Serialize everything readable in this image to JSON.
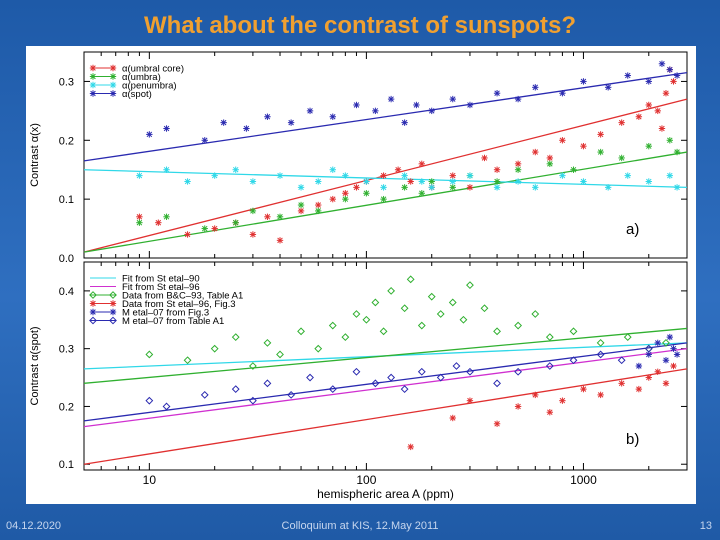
{
  "slide": {
    "title": "What about the contrast of sunspots?",
    "footer_date": "04.12.2020",
    "footer_center": "Colloquium at KIS, 12.May 2011",
    "page_number": "13"
  },
  "chart_data": [
    {
      "type": "scatter",
      "panel_label": "a)",
      "ylabel": "Contrast α(x)",
      "xlabel": "",
      "xscale": "log",
      "xlim": [
        5,
        3000
      ],
      "ylim": [
        0.0,
        0.35
      ],
      "yticks": [
        "0.0",
        "0.1",
        "0.2",
        "0.3"
      ],
      "legend_position": "top-left",
      "series": [
        {
          "name": "α(umbral core)",
          "color": "#e03030",
          "marker": "asterisk",
          "points": [
            [
              9,
              0.07
            ],
            [
              11,
              0.06
            ],
            [
              15,
              0.04
            ],
            [
              20,
              0.05
            ],
            [
              25,
              0.06
            ],
            [
              30,
              0.04
            ],
            [
              35,
              0.07
            ],
            [
              40,
              0.03
            ],
            [
              50,
              0.08
            ],
            [
              60,
              0.09
            ],
            [
              70,
              0.1
            ],
            [
              80,
              0.11
            ],
            [
              90,
              0.12
            ],
            [
              100,
              0.13
            ],
            [
              120,
              0.14
            ],
            [
              140,
              0.15
            ],
            [
              160,
              0.13
            ],
            [
              180,
              0.16
            ],
            [
              200,
              0.12
            ],
            [
              250,
              0.14
            ],
            [
              300,
              0.12
            ],
            [
              350,
              0.17
            ],
            [
              400,
              0.15
            ],
            [
              500,
              0.16
            ],
            [
              600,
              0.18
            ],
            [
              700,
              0.17
            ],
            [
              800,
              0.2
            ],
            [
              1000,
              0.19
            ],
            [
              1200,
              0.21
            ],
            [
              1500,
              0.23
            ],
            [
              1800,
              0.24
            ],
            [
              2000,
              0.26
            ],
            [
              2200,
              0.25
            ],
            [
              2400,
              0.28
            ],
            [
              2600,
              0.3
            ],
            [
              2300,
              0.22
            ],
            [
              2500,
              0.32
            ]
          ],
          "fit": [
            [
              5,
              0.01
            ],
            [
              3000,
              0.27
            ]
          ]
        },
        {
          "name": "α(umbra)",
          "color": "#30b030",
          "marker": "asterisk",
          "points": [
            [
              9,
              0.06
            ],
            [
              12,
              0.07
            ],
            [
              18,
              0.05
            ],
            [
              25,
              0.06
            ],
            [
              30,
              0.08
            ],
            [
              40,
              0.07
            ],
            [
              50,
              0.09
            ],
            [
              60,
              0.08
            ],
            [
              80,
              0.1
            ],
            [
              100,
              0.11
            ],
            [
              120,
              0.1
            ],
            [
              150,
              0.12
            ],
            [
              180,
              0.11
            ],
            [
              200,
              0.13
            ],
            [
              250,
              0.12
            ],
            [
              300,
              0.14
            ],
            [
              400,
              0.13
            ],
            [
              500,
              0.15
            ],
            [
              700,
              0.16
            ],
            [
              900,
              0.15
            ],
            [
              1200,
              0.18
            ],
            [
              1500,
              0.17
            ],
            [
              2000,
              0.19
            ],
            [
              2500,
              0.2
            ],
            [
              2700,
              0.18
            ]
          ],
          "fit": [
            [
              5,
              0.01
            ],
            [
              3000,
              0.18
            ]
          ]
        },
        {
          "name": "α(penumbra)",
          "color": "#30d8e8",
          "marker": "asterisk",
          "points": [
            [
              9,
              0.14
            ],
            [
              12,
              0.15
            ],
            [
              15,
              0.13
            ],
            [
              20,
              0.14
            ],
            [
              25,
              0.15
            ],
            [
              30,
              0.13
            ],
            [
              40,
              0.14
            ],
            [
              50,
              0.12
            ],
            [
              60,
              0.13
            ],
            [
              70,
              0.15
            ],
            [
              80,
              0.14
            ],
            [
              100,
              0.13
            ],
            [
              120,
              0.12
            ],
            [
              150,
              0.14
            ],
            [
              180,
              0.13
            ],
            [
              200,
              0.12
            ],
            [
              250,
              0.13
            ],
            [
              300,
              0.14
            ],
            [
              400,
              0.12
            ],
            [
              500,
              0.13
            ],
            [
              600,
              0.12
            ],
            [
              800,
              0.14
            ],
            [
              1000,
              0.13
            ],
            [
              1300,
              0.12
            ],
            [
              1600,
              0.14
            ],
            [
              2000,
              0.13
            ],
            [
              2500,
              0.14
            ],
            [
              2700,
              0.12
            ]
          ],
          "fit": [
            [
              5,
              0.15
            ],
            [
              3000,
              0.12
            ]
          ]
        },
        {
          "name": "α(spot)",
          "color": "#2a2ab0",
          "marker": "asterisk",
          "points": [
            [
              10,
              0.21
            ],
            [
              12,
              0.22
            ],
            [
              18,
              0.2
            ],
            [
              22,
              0.23
            ],
            [
              28,
              0.22
            ],
            [
              35,
              0.24
            ],
            [
              45,
              0.23
            ],
            [
              55,
              0.25
            ],
            [
              70,
              0.24
            ],
            [
              90,
              0.26
            ],
            [
              110,
              0.25
            ],
            [
              130,
              0.27
            ],
            [
              150,
              0.23
            ],
            [
              170,
              0.26
            ],
            [
              200,
              0.25
            ],
            [
              250,
              0.27
            ],
            [
              300,
              0.26
            ],
            [
              400,
              0.28
            ],
            [
              500,
              0.27
            ],
            [
              600,
              0.29
            ],
            [
              800,
              0.28
            ],
            [
              1000,
              0.3
            ],
            [
              1300,
              0.29
            ],
            [
              1600,
              0.31
            ],
            [
              2000,
              0.3
            ],
            [
              2300,
              0.33
            ],
            [
              2500,
              0.32
            ],
            [
              2700,
              0.31
            ]
          ],
          "fit": [
            [
              5,
              0.165
            ],
            [
              3000,
              0.315
            ]
          ]
        }
      ]
    },
    {
      "type": "scatter",
      "panel_label": "b)",
      "ylabel": "Contrast α(spot)",
      "xlabel": "hemispheric area A (ppm)",
      "xscale": "log",
      "xlim": [
        5,
        3000
      ],
      "ylim": [
        0.09,
        0.45
      ],
      "xticks": [
        {
          "value": 10,
          "label": "10"
        },
        {
          "value": 100,
          "label": "100"
        },
        {
          "value": 1000,
          "label": "1000"
        }
      ],
      "yticks": [
        "0.1",
        "0.2",
        "0.3",
        "0.4"
      ],
      "legend_position": "top-left",
      "series": [
        {
          "name": "Fit from St etal–90",
          "color": "#30d8e8",
          "marker": "none",
          "fit": [
            [
              5,
              0.265
            ],
            [
              3000,
              0.31
            ]
          ]
        },
        {
          "name": "Fit from St etal–96",
          "color": "#d030d0",
          "marker": "none",
          "fit": [
            [
              5,
              0.165
            ],
            [
              3000,
              0.3
            ]
          ]
        },
        {
          "name": "Data from B&C–93, Table A1",
          "color": "#30b030",
          "marker": "diamond",
          "points": [
            [
              10,
              0.29
            ],
            [
              15,
              0.28
            ],
            [
              20,
              0.3
            ],
            [
              25,
              0.32
            ],
            [
              30,
              0.27
            ],
            [
              35,
              0.31
            ],
            [
              40,
              0.29
            ],
            [
              50,
              0.33
            ],
            [
              60,
              0.3
            ],
            [
              70,
              0.34
            ],
            [
              80,
              0.32
            ],
            [
              90,
              0.36
            ],
            [
              100,
              0.35
            ],
            [
              110,
              0.38
            ],
            [
              120,
              0.33
            ],
            [
              130,
              0.4
            ],
            [
              150,
              0.37
            ],
            [
              160,
              0.42
            ],
            [
              180,
              0.34
            ],
            [
              200,
              0.39
            ],
            [
              220,
              0.36
            ],
            [
              250,
              0.38
            ],
            [
              280,
              0.35
            ],
            [
              300,
              0.41
            ],
            [
              350,
              0.37
            ],
            [
              400,
              0.33
            ],
            [
              500,
              0.34
            ],
            [
              600,
              0.36
            ],
            [
              700,
              0.32
            ],
            [
              900,
              0.33
            ],
            [
              1200,
              0.31
            ],
            [
              1600,
              0.32
            ],
            [
              2000,
              0.3
            ],
            [
              2400,
              0.31
            ]
          ],
          "fit": [
            [
              5,
              0.24
            ],
            [
              3000,
              0.335
            ]
          ]
        },
        {
          "name": "Data from St etal–96, Fig.3",
          "color": "#e03030",
          "marker": "asterisk",
          "points": [
            [
              160,
              0.13
            ],
            [
              250,
              0.18
            ],
            [
              300,
              0.21
            ],
            [
              400,
              0.17
            ],
            [
              500,
              0.2
            ],
            [
              600,
              0.22
            ],
            [
              700,
              0.19
            ],
            [
              800,
              0.21
            ],
            [
              1000,
              0.23
            ],
            [
              1200,
              0.22
            ],
            [
              1500,
              0.24
            ],
            [
              1800,
              0.23
            ],
            [
              2000,
              0.25
            ],
            [
              2200,
              0.26
            ],
            [
              2400,
              0.24
            ],
            [
              2600,
              0.27
            ]
          ],
          "fit": [
            [
              5,
              0.1
            ],
            [
              3000,
              0.265
            ]
          ]
        },
        {
          "name": "M etal–07 from Fig.3",
          "color": "#2a2ab0",
          "marker": "asterisk",
          "points": [
            [
              1800,
              0.27
            ],
            [
              2000,
              0.29
            ],
            [
              2200,
              0.31
            ],
            [
              2400,
              0.28
            ],
            [
              2500,
              0.32
            ],
            [
              2600,
              0.3
            ],
            [
              2700,
              0.29
            ]
          ],
          "fit": [
            [
              5,
              0.175
            ],
            [
              3000,
              0.31
            ]
          ]
        },
        {
          "name": "M etal–07 from Table A1",
          "color": "#2a2ab0",
          "marker": "diamond",
          "points": [
            [
              10,
              0.21
            ],
            [
              12,
              0.2
            ],
            [
              18,
              0.22
            ],
            [
              25,
              0.23
            ],
            [
              30,
              0.21
            ],
            [
              35,
              0.24
            ],
            [
              45,
              0.22
            ],
            [
              55,
              0.25
            ],
            [
              70,
              0.23
            ],
            [
              90,
              0.26
            ],
            [
              110,
              0.24
            ],
            [
              130,
              0.25
            ],
            [
              150,
              0.23
            ],
            [
              180,
              0.26
            ],
            [
              220,
              0.25
            ],
            [
              260,
              0.27
            ],
            [
              300,
              0.26
            ],
            [
              400,
              0.24
            ],
            [
              500,
              0.26
            ],
            [
              700,
              0.27
            ],
            [
              900,
              0.28
            ],
            [
              1200,
              0.29
            ],
            [
              1500,
              0.28
            ],
            [
              2000,
              0.3
            ]
          ]
        }
      ]
    }
  ]
}
